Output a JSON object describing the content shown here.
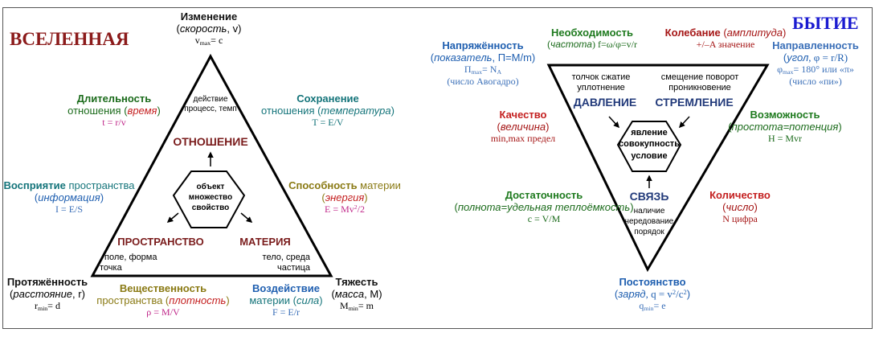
{
  "left": {
    "title": "ВСЕЛЕННАЯ",
    "izmenenie": {
      "name": "Изменение",
      "sub1": "скорость",
      "sub2": ", v",
      "formula": "v",
      "formula_sub": "max",
      "formula_rest": "= c"
    },
    "top_inner": {
      "line1": "действие",
      "line2": "процесс, темп"
    },
    "otnoshenie": "ОТНОШЕНИЕ",
    "dlitelnost": {
      "name": "Длительность",
      "line2a": "отношения (",
      "line2b": "время",
      "line2c": ")",
      "formula": "t = r/v"
    },
    "sokhranenie": {
      "name": "Сохранение",
      "line2a": "отношения (",
      "line2b": "температура",
      "line2c": ")",
      "formula": "T = E/V"
    },
    "vospriyatie": {
      "name": "Восприятие",
      "name2": " пространства",
      "line2a": "(",
      "line2b": "информация",
      "line2c": ")",
      "formula": "I = E/S"
    },
    "sposobnost": {
      "name": "Способность",
      "name2": " материи",
      "line2a": "(",
      "line2b": "энергия",
      "line2c": ")",
      "formula": "E = Mv",
      "formula_sup": "2",
      "formula_rest": "/2"
    },
    "hexagon": {
      "line1": "объект",
      "line2": "множество",
      "line3": "свойство"
    },
    "prostranstvo": {
      "name": "ПРОСТРАНСТВО",
      "line1": "поле, форма",
      "line2": "точка"
    },
    "materiya": {
      "name": "МАТЕРИЯ",
      "line1": "тело, среда",
      "line2": "частица"
    },
    "protyazhennost": {
      "name": "Протяжённость",
      "line2a": "(",
      "line2b": "расстояние",
      "line2c": ", r)",
      "formula": "r",
      "formula_sub": "min",
      "formula_rest": "= d"
    },
    "veshchestvennost": {
      "name": "Вещественность",
      "line2a": "пространства (",
      "line2b": "плотность",
      "line2c": ")",
      "formula": "ρ = M/V"
    },
    "vozdeystvie": {
      "name": "Воздействие",
      "line2a": "материи (",
      "line2b": "сила",
      "line2c": ")",
      "formula": "F = E/r"
    },
    "tyazhest": {
      "name": "Тяжесть",
      "line2a": "(",
      "line2b": "масса",
      "line2c": ", M)",
      "formula": "M",
      "formula_sub": "min",
      "formula_rest": "= m"
    }
  },
  "right": {
    "title": "БЫТИЕ",
    "napryazhennost": {
      "name": "Напряжённость",
      "line2a": "(",
      "line2b": "показатель",
      "line2c": ", П=M/m)",
      "formula": "П",
      "formula_sub": "max",
      "formula_rest": "= N",
      "formula_sub2": "A",
      "line4": "(число Авогадро)"
    },
    "neobkhodimost": {
      "name": "Необходимость",
      "line2a": "(",
      "line2b": "частота",
      "line2c": ") f=ω/φ=v/r"
    },
    "kolebanie": {
      "name": "Колебание",
      "name2": "амплитуда",
      "formula": "+/–A значение"
    },
    "napravlennost": {
      "name": "Направленность",
      "line2a": "(",
      "line2b": "угол",
      "line2c": ", φ = r/R)",
      "formula": "φ",
      "formula_sub": "max",
      "formula_rest": "= 180° или «π»",
      "line4": "(число «пи»)"
    },
    "davlenie": {
      "top1": "толчок сжатие",
      "top2": "уплотнение",
      "name": "ДАВЛЕНИЕ"
    },
    "stremlenie": {
      "top1": "смещение поворот",
      "top2": "проникновение",
      "name": "СТРЕМЛЕНИЕ"
    },
    "kachestvo": {
      "name": "Качество",
      "line2a": "(",
      "line2b": "величина",
      "line2c": ")",
      "formula": "min,max предел"
    },
    "vozmozhnost": {
      "name": "Возможность",
      "line2a": "(",
      "line2b": "простота=потенция",
      "line2c": ")",
      "formula": "H = Mvr"
    },
    "hexagon": {
      "line1": "явление",
      "line2": "совокупность",
      "line3": "условие"
    },
    "svyaz": {
      "name": "СВЯЗЬ",
      "line1": "наличие",
      "line2": "чередование",
      "line3": "порядок"
    },
    "dostatochnost": {
      "name": "Достаточность",
      "line2a": "(",
      "line2b": "полнота=удельная теплоёмкость",
      "line2c": ")",
      "formula": "c = V/M"
    },
    "kolichestvo": {
      "name": "Количество",
      "line2a": "(",
      "line2b": "число",
      "line2c": ")",
      "formula": "N цифра"
    },
    "postoyanstvo": {
      "name": "Постоянство",
      "line2a": "(",
      "line2b": "заряд",
      "line2c": ", q = v",
      "line2sup": "2",
      "line2d": "/c",
      "line2sup2": "2",
      "line2e": ")",
      "formula": "q",
      "formula_sub": "min",
      "formula_rest": "= e"
    }
  }
}
